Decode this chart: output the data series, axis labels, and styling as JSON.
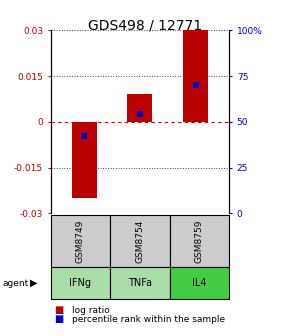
{
  "title": "GDS498 / 12771",
  "samples": [
    "GSM8749",
    "GSM8754",
    "GSM8759"
  ],
  "agents": [
    "IFNg",
    "TNFa",
    "IL4"
  ],
  "log_ratios": [
    -0.025,
    0.009,
    0.03
  ],
  "percentiles": [
    42,
    54,
    70
  ],
  "ylim_left": [
    -0.03,
    0.03
  ],
  "ylim_right": [
    0,
    100
  ],
  "yticks_left": [
    -0.03,
    -0.015,
    0,
    0.015,
    0.03
  ],
  "yticks_right": [
    0,
    25,
    50,
    75,
    100
  ],
  "ytick_labels_left": [
    "-0.03",
    "-0.015",
    "0",
    "0.015",
    "0.03"
  ],
  "ytick_labels_right": [
    "0",
    "25",
    "50",
    "75",
    "100%"
  ],
  "bar_color": "#bb0000",
  "percentile_color": "#0000cc",
  "agent_colors": [
    "#aaddaa",
    "#aaddaa",
    "#44cc44"
  ],
  "sample_bg_color": "#cccccc",
  "zero_line_color": "#cc0000",
  "grid_color": "#444444",
  "title_fontsize": 10,
  "bar_width": 0.45
}
